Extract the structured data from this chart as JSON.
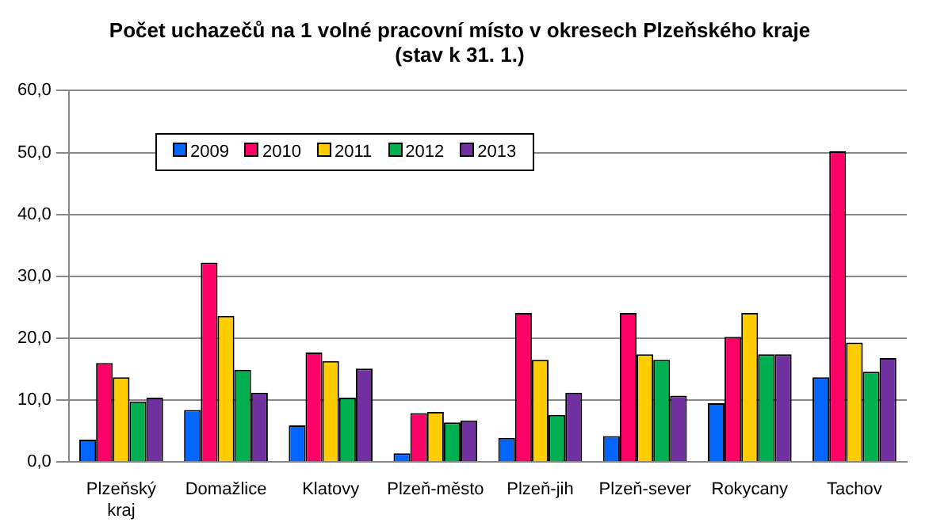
{
  "chart_data": {
    "type": "bar",
    "title": "Počet uchazečů na 1 volné pracovní místo v okresech Plzeňského kraje\n(stav k 31. 1.)",
    "categories": [
      "Plzeňský kraj",
      "Domažlice",
      "Klatovy",
      "Plzeň-město",
      "Plzeň-jih",
      "Plzeň-sever",
      "Rokycany",
      "Tachov"
    ],
    "series": [
      {
        "name": "2009",
        "color": "#0066ff",
        "values": [
          3.6,
          8.4,
          5.9,
          1.4,
          3.9,
          4.2,
          9.5,
          13.7
        ]
      },
      {
        "name": "2010",
        "color": "#ff0066",
        "values": [
          16.0,
          32.2,
          17.7,
          7.9,
          24.1,
          24.1,
          20.2,
          50.2
        ]
      },
      {
        "name": "2011",
        "color": "#ffcc00",
        "values": [
          13.7,
          23.6,
          16.3,
          8.1,
          16.5,
          17.4,
          24.1,
          19.3
        ]
      },
      {
        "name": "2012",
        "color": "#00b050",
        "values": [
          9.8,
          14.9,
          10.4,
          6.4,
          7.6,
          16.5,
          17.4,
          14.6
        ]
      },
      {
        "name": "2013",
        "color": "#7030a0",
        "values": [
          10.4,
          11.2,
          15.1,
          6.7,
          11.2,
          10.7,
          17.4,
          16.8
        ]
      }
    ],
    "ylim": [
      0,
      60
    ],
    "yticks": [
      {
        "value": 0,
        "label": "0,0"
      },
      {
        "value": 10,
        "label": "10,0"
      },
      {
        "value": 20,
        "label": "20,0"
      },
      {
        "value": 30,
        "label": "30,0"
      },
      {
        "value": 40,
        "label": "40,0"
      },
      {
        "value": 50,
        "label": "50,0"
      },
      {
        "value": 60,
        "label": "60,0"
      }
    ],
    "grid": "y",
    "legend": "top"
  }
}
